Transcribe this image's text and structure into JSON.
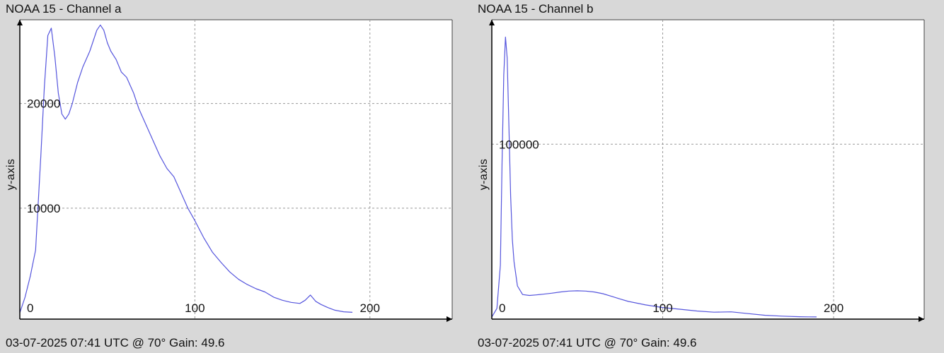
{
  "chart_data": [
    {
      "type": "line",
      "title": "NOAA 15 - Channel a",
      "footer": "03-07-2025 07:41 UTC @ 70° Gain: 49.6",
      "xlabel": "",
      "ylabel": "y-axis",
      "xlim": [
        0,
        247
      ],
      "ylim": [
        -600,
        28000
      ],
      "xticks": [
        0,
        100,
        200
      ],
      "yticks": [
        10000,
        20000
      ],
      "grid": true,
      "line_color": "#5555dd",
      "series": [
        {
          "x": [
            0,
            3,
            6,
            9,
            12,
            14,
            16,
            18,
            20,
            22,
            24,
            26,
            28,
            30,
            33,
            36,
            40,
            44,
            46,
            48,
            50,
            52,
            55,
            58,
            61,
            65,
            68,
            72,
            76,
            80,
            84,
            88,
            92,
            96,
            100,
            105,
            110,
            115,
            120,
            125,
            130,
            135,
            140,
            145,
            150,
            155,
            160,
            163,
            166,
            169,
            172,
            176,
            180,
            185,
            190
          ],
          "y": [
            0,
            1500,
            3500,
            6000,
            15000,
            21500,
            26500,
            27200,
            24500,
            21000,
            19000,
            18500,
            19000,
            20000,
            22000,
            23500,
            25000,
            27000,
            27500,
            27000,
            25800,
            25000,
            24200,
            23000,
            22500,
            21000,
            19500,
            18000,
            16500,
            15000,
            13800,
            13000,
            11500,
            10000,
            8800,
            7200,
            5800,
            4800,
            3900,
            3200,
            2700,
            2300,
            2000,
            1500,
            1200,
            1000,
            900,
            1200,
            1700,
            1100,
            800,
            500,
            250,
            100,
            50
          ]
        }
      ]
    },
    {
      "type": "line",
      "title": "NOAA 15 - Channel b",
      "footer": "03-07-2025 07:41 UTC @ 70° Gain: 49.6",
      "xlabel": "",
      "ylabel": "y-axis",
      "xlim": [
        0,
        253
      ],
      "ylim": [
        -1200,
        172000
      ],
      "xticks": [
        0,
        100,
        200
      ],
      "yticks": [
        100000
      ],
      "grid": true,
      "line_color": "#5555dd",
      "series": [
        {
          "x": [
            0,
            3,
            5,
            6,
            7,
            8,
            9,
            10,
            11,
            12,
            13,
            15,
            18,
            22,
            26,
            30,
            35,
            40,
            45,
            50,
            55,
            60,
            65,
            70,
            75,
            80,
            90,
            100,
            110,
            120,
            130,
            140,
            150,
            160,
            170,
            180,
            185,
            190
          ],
          "y": [
            0,
            5000,
            30000,
            90000,
            140000,
            162000,
            150000,
            110000,
            70000,
            45000,
            32000,
            18000,
            13000,
            12500,
            12800,
            13200,
            13800,
            14500,
            15000,
            15200,
            15000,
            14500,
            13500,
            12000,
            10500,
            9000,
            7000,
            5500,
            4500,
            3500,
            2800,
            3000,
            2000,
            1000,
            500,
            200,
            100,
            50
          ]
        }
      ]
    }
  ]
}
